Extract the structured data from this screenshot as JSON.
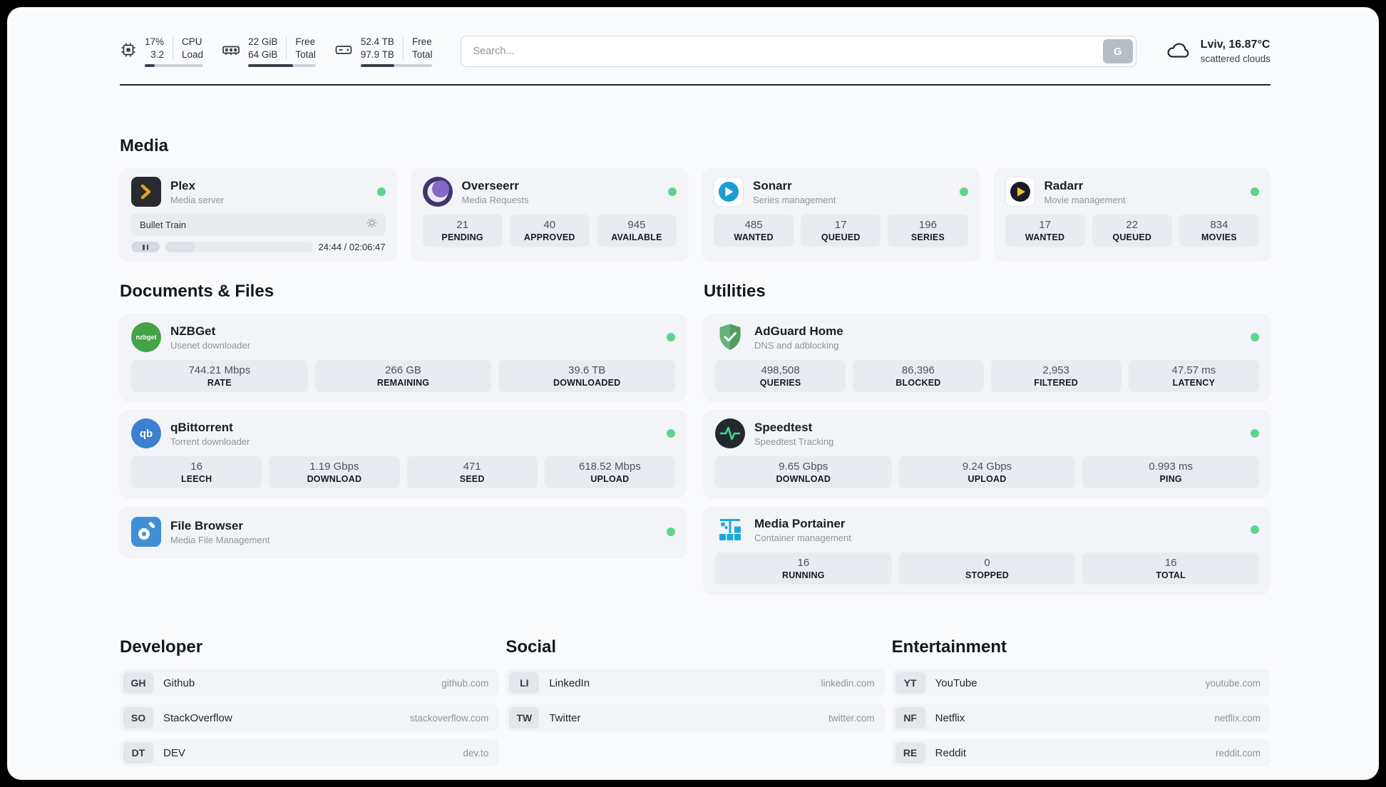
{
  "colors": {
    "status_online": "#5ed38f",
    "page_background": "#fafbfd",
    "card_background": "#f2f4f7",
    "stat_background": "#e8ecf1",
    "plex_accent": "#e8a222",
    "adguard_green": "#5fae6b",
    "portainer_blue": "#1ca8dd"
  },
  "header": {
    "cpu": {
      "value_top": "17%",
      "value_bottom": "3.2",
      "label_top": "CPU",
      "label_bottom": "Load",
      "progress_percent": 17
    },
    "ram": {
      "value_top": "22 GiB",
      "value_bottom": "64 GiB",
      "label_top": "Free",
      "label_bottom": "Total",
      "progress_percent": 66
    },
    "disk": {
      "value_top": "52.4 TB",
      "value_bottom": "97.9 TB",
      "label_top": "Free",
      "label_bottom": "Total",
      "progress_percent": 47
    },
    "search": {
      "placeholder": "Search...",
      "engine_button": "G"
    },
    "weather": {
      "location": "Lviv, 16.87°C",
      "condition": "scattered clouds"
    }
  },
  "sections": {
    "media": {
      "title": "Media",
      "apps": {
        "plex": {
          "name": "Plex",
          "subtitle": "Media server",
          "now_playing": {
            "title": "Bullet Train",
            "time": "24:44 / 02:06:47",
            "progress_percent": 20
          }
        },
        "overseerr": {
          "name": "Overseerr",
          "subtitle": "Media Requests",
          "stats": [
            {
              "value": "21",
              "label": "PENDING"
            },
            {
              "value": "40",
              "label": "APPROVED"
            },
            {
              "value": "945",
              "label": "AVAILABLE"
            }
          ]
        },
        "sonarr": {
          "name": "Sonarr",
          "subtitle": "Series management",
          "stats": [
            {
              "value": "485",
              "label": "WANTED"
            },
            {
              "value": "17",
              "label": "QUEUED"
            },
            {
              "value": "196",
              "label": "SERIES"
            }
          ]
        },
        "radarr": {
          "name": "Radarr",
          "subtitle": "Movie management",
          "stats": [
            {
              "value": "17",
              "label": "WANTED"
            },
            {
              "value": "22",
              "label": "QUEUED"
            },
            {
              "value": "834",
              "label": "MOVIES"
            }
          ]
        }
      }
    },
    "documents": {
      "title": "Documents & Files",
      "apps": {
        "nzbget": {
          "name": "NZBGet",
          "subtitle": "Usenet downloader",
          "icon_text": "nzbget",
          "stats": [
            {
              "value": "744.21 Mbps",
              "label": "RATE"
            },
            {
              "value": "266 GB",
              "label": "REMAINING"
            },
            {
              "value": "39.6 TB",
              "label": "DOWNLOADED"
            }
          ]
        },
        "qbittorrent": {
          "name": "qBittorrent",
          "subtitle": "Torrent downloader",
          "icon_text": "qb",
          "stats": [
            {
              "value": "16",
              "label": "LEECH"
            },
            {
              "value": "1.19 Gbps",
              "label": "DOWNLOAD"
            },
            {
              "value": "471",
              "label": "SEED"
            },
            {
              "value": "618.52 Mbps",
              "label": "UPLOAD"
            }
          ]
        },
        "filebrowser": {
          "name": "File Browser",
          "subtitle": "Media File Management"
        }
      }
    },
    "utilities": {
      "title": "Utilities",
      "apps": {
        "adguard": {
          "name": "AdGuard Home",
          "subtitle": "DNS and adblocking",
          "stats": [
            {
              "value": "498,508",
              "label": "QUERIES"
            },
            {
              "value": "86,396",
              "label": "BLOCKED"
            },
            {
              "value": "2,953",
              "label": "FILTERED"
            },
            {
              "value": "47.57 ms",
              "label": "LATENCY"
            }
          ]
        },
        "speedtest": {
          "name": "Speedtest",
          "subtitle": "Speedtest Tracking",
          "stats": [
            {
              "value": "9.65 Gbps",
              "label": "DOWNLOAD"
            },
            {
              "value": "9.24 Gbps",
              "label": "UPLOAD"
            },
            {
              "value": "0.993 ms",
              "label": "PING"
            }
          ]
        },
        "portainer": {
          "name": "Media Portainer",
          "subtitle": "Container management",
          "stats": [
            {
              "value": "16",
              "label": "RUNNING"
            },
            {
              "value": "0",
              "label": "STOPPED"
            },
            {
              "value": "16",
              "label": "TOTAL"
            }
          ]
        }
      }
    }
  },
  "bookmarks": {
    "developer": {
      "title": "Developer",
      "items": [
        {
          "abbr": "GH",
          "name": "Github",
          "url": "github.com"
        },
        {
          "abbr": "SO",
          "name": "StackOverflow",
          "url": "stackoverflow.com"
        },
        {
          "abbr": "DT",
          "name": "DEV",
          "url": "dev.to"
        }
      ]
    },
    "social": {
      "title": "Social",
      "items": [
        {
          "abbr": "LI",
          "name": "LinkedIn",
          "url": "linkedin.com"
        },
        {
          "abbr": "TW",
          "name": "Twitter",
          "url": "twitter.com"
        }
      ]
    },
    "entertainment": {
      "title": "Entertainment",
      "items": [
        {
          "abbr": "YT",
          "name": "YouTube",
          "url": "youtube.com"
        },
        {
          "abbr": "NF",
          "name": "Netflix",
          "url": "netflix.com"
        },
        {
          "abbr": "RE",
          "name": "Reddit",
          "url": "reddit.com"
        }
      ]
    }
  }
}
